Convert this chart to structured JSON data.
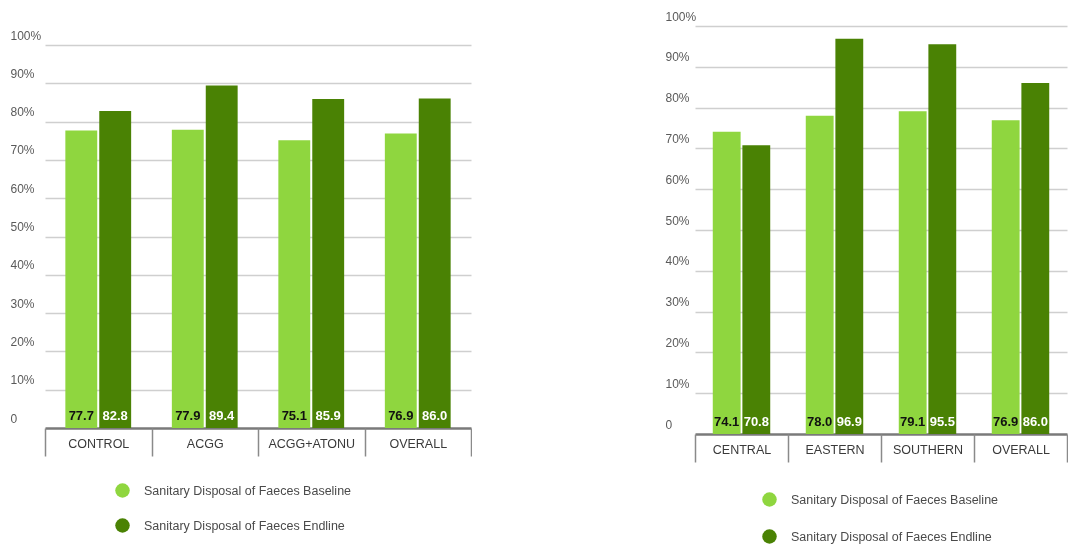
{
  "chart_data": [
    {
      "type": "bar",
      "categories": [
        "CONTROL",
        "ACGG",
        "ACGG+ATONU",
        "OVERALL"
      ],
      "series": [
        {
          "name": "Sanitary Disposal of Faeces Baseline",
          "color": "#8fd63f",
          "values": [
            77.7,
            77.9,
            75.1,
            76.9
          ],
          "value_labels": [
            "77.7",
            "77.9",
            "75.1",
            "76.9"
          ]
        },
        {
          "name": "Sanitary Disposal of Faeces Endline",
          "color": "#4a8204",
          "values": [
            82.8,
            89.4,
            85.9,
            86.0
          ],
          "value_labels": [
            "82.8",
            "89.4",
            "85.9",
            "86.0"
          ]
        }
      ],
      "ylim": [
        0,
        100
      ],
      "yticks": [
        0,
        {
          "value": 10,
          "label": "10%"
        },
        {
          "value": 20,
          "label": "20%"
        },
        {
          "value": 30,
          "label": "30%"
        },
        {
          "value": 40,
          "label": "40%"
        },
        {
          "value": 50,
          "label": "50%"
        },
        {
          "value": 60,
          "label": "60%"
        },
        {
          "value": 70,
          "label": "70%"
        },
        {
          "value": 80,
          "label": "80%"
        },
        {
          "value": 90,
          "label": "90%"
        },
        {
          "value": 100,
          "label": "100%"
        }
      ],
      "grid": "y",
      "legend": "bottom"
    },
    {
      "type": "bar",
      "categories": [
        "CENTRAL",
        "EASTERN",
        "SOUTHERN",
        "OVERALL"
      ],
      "series": [
        {
          "name": "Sanitary Disposal of Faeces Baseline",
          "color": "#8fd63f",
          "values": [
            74.1,
            78.0,
            79.1,
            76.9
          ],
          "value_labels": [
            "74.1",
            "78.0",
            "79.1",
            "76.9"
          ]
        },
        {
          "name": "Sanitary Disposal of Faeces Endline",
          "color": "#4a8204",
          "values": [
            70.8,
            96.9,
            95.5,
            86.0
          ],
          "value_labels": [
            "70.8",
            "96.9",
            "95.5",
            "86.0"
          ]
        }
      ],
      "ylim": [
        0,
        100
      ],
      "yticks": [
        0,
        {
          "value": 10,
          "label": "10%"
        },
        {
          "value": 20,
          "label": "20%"
        },
        {
          "value": 30,
          "label": "30%"
        },
        {
          "value": 40,
          "label": "40%"
        },
        {
          "value": 50,
          "label": "50%"
        },
        {
          "value": 60,
          "label": "60%"
        },
        {
          "value": 70,
          "label": "70%"
        },
        {
          "value": 80,
          "label": "80%"
        },
        {
          "value": 90,
          "label": "90%"
        },
        {
          "value": 100,
          "label": "100%"
        }
      ],
      "grid": "y",
      "legend": "bottom"
    }
  ]
}
